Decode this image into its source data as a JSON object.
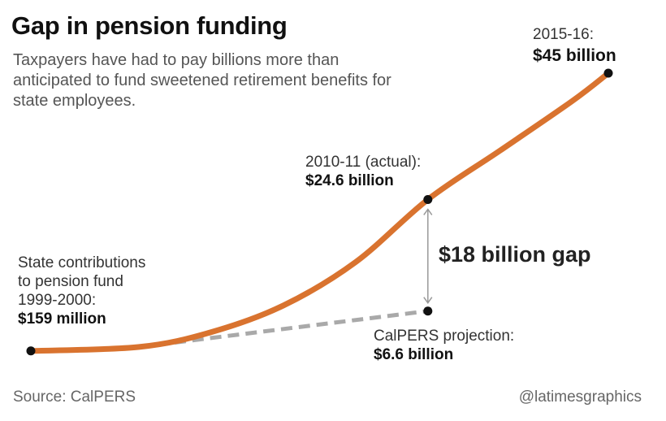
{
  "title": "Gap in pension funding",
  "subtitle": "Taxpayers have had to pay billions more than anticipated to fund sweetened retirement benefits for state employees.",
  "source": "Source: CalPERS",
  "credit": "@latimesgraphics",
  "colors": {
    "actual_line": "#d9732f",
    "projection_line": "#a9a9a9",
    "point": "#111111",
    "gap_arrow": "#999999"
  },
  "annotations": {
    "start": {
      "lines": [
        "State contributions",
        "to pension fund",
        "1999-2000:"
      ],
      "value": "$159 million"
    },
    "mid": {
      "lines": [
        "2010-11 (actual):"
      ],
      "value": "$24.6 billion"
    },
    "end": {
      "lines": [
        "2015-16:"
      ],
      "value": "$45 billion"
    },
    "projection": {
      "lines": [
        "CalPERS projection:"
      ],
      "value": "$6.6 billion"
    },
    "gap": "$18 billion gap"
  },
  "chart_data": {
    "type": "line",
    "title": "Gap in pension funding",
    "xlabel": "",
    "ylabel": "",
    "grid": false,
    "axes_visible": false,
    "x_domain": [
      1999,
      2015
    ],
    "y_domain": [
      0,
      45
    ],
    "series": [
      {
        "name": "State contributions (actual)",
        "style": "solid",
        "x": [
          1999,
          2002,
          2004,
          2006,
          2008,
          2010,
          2012,
          2014,
          2015
        ],
        "y": [
          0.159,
          0.8,
          3.2,
          7.5,
          14.5,
          24.6,
          32.5,
          40.5,
          45
        ]
      },
      {
        "name": "CalPERS projection",
        "style": "dashed",
        "x": [
          2002,
          2010
        ],
        "y": [
          0.8,
          6.6
        ]
      }
    ],
    "highlight_points": [
      {
        "x": 1999,
        "y": 0.159,
        "label": "$159 million"
      },
      {
        "x": 2010,
        "y": 24.6,
        "label": "$24.6 billion"
      },
      {
        "x": 2015,
        "y": 45,
        "label": "$45 billion"
      },
      {
        "x": 2010,
        "y": 6.6,
        "label": "$6.6 billion"
      }
    ],
    "gap": {
      "x": 2010,
      "from": 6.6,
      "to": 24.6,
      "label": "$18 billion gap"
    }
  }
}
